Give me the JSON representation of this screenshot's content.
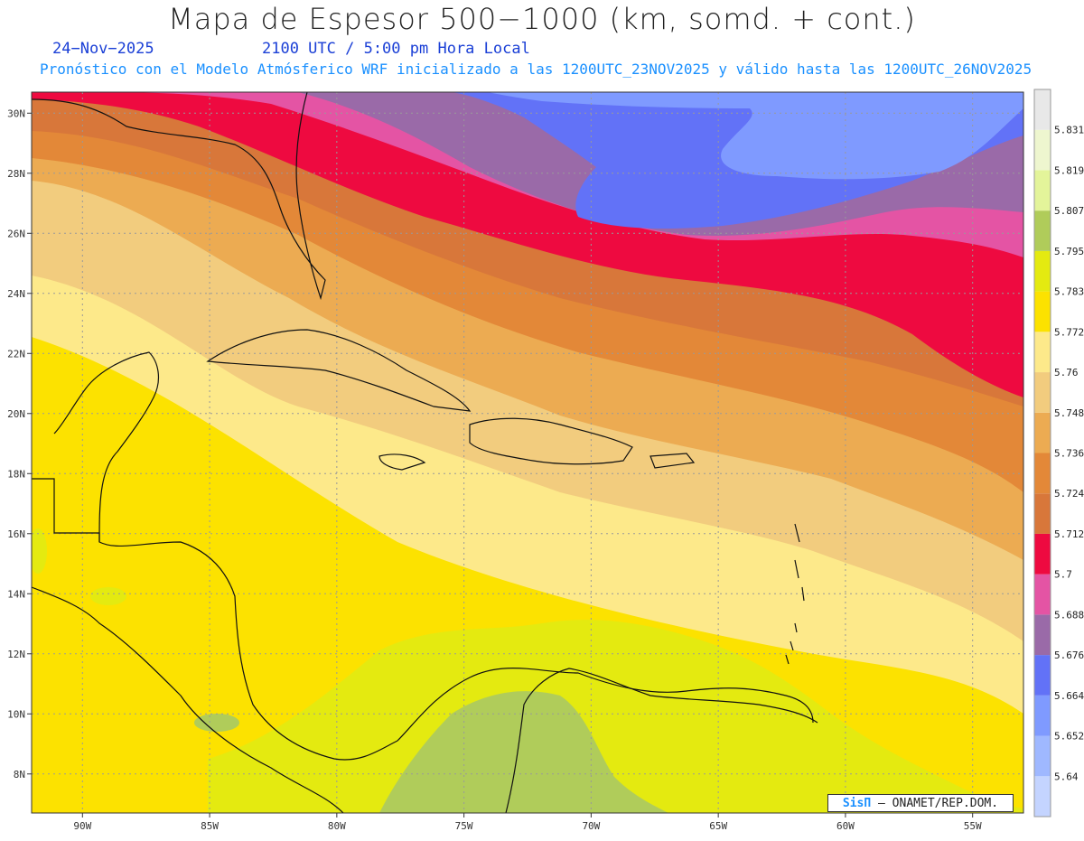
{
  "header": {
    "title": "Mapa de Espesor 500−1000 (km, somd. + cont.)",
    "date": "24−Nov−2025",
    "time": "2100 UTC / 5:00 pm Hora Local",
    "subtitle": "Pronóstico con el Modelo Atmósferico WRF inicializado a las 1200UTC_23NOV2025 y válido hasta las  1200UTC_26NOV2025"
  },
  "map": {
    "lon_range": [
      -92,
      -53
    ],
    "lat_range": [
      6.7,
      30.7
    ],
    "lat_ticks": [
      "8N",
      "10N",
      "12N",
      "14N",
      "16N",
      "18N",
      "20N",
      "22N",
      "24N",
      "26N",
      "28N",
      "30N"
    ],
    "lat_values": [
      8,
      10,
      12,
      14,
      16,
      18,
      20,
      22,
      24,
      26,
      28,
      30
    ],
    "lon_ticks": [
      "90W",
      "85W",
      "80W",
      "75W",
      "70W",
      "65W",
      "60W",
      "55W"
    ],
    "lon_values": [
      -90,
      -85,
      -80,
      -75,
      -70,
      -65,
      -60,
      -55
    ]
  },
  "colorbar": {
    "labels": [
      "5.64",
      "5.652",
      "5.664",
      "5.676",
      "5.688",
      "5.7",
      "5.712",
      "5.724",
      "5.736",
      "5.748",
      "5.76",
      "5.772",
      "5.783",
      "5.795",
      "5.807",
      "5.819",
      "5.831"
    ],
    "colors": [
      "#c4d4ff",
      "#9fb8ff",
      "#7f9aff",
      "#6272f7",
      "#9a6aa8",
      "#e454a4",
      "#ee0a40",
      "#d8773a",
      "#e38838",
      "#ecab52",
      "#f2cc7e",
      "#fde98a",
      "#fce200",
      "#e4ea10",
      "#b0cc5a",
      "#e3f49a",
      "#eef6cf",
      "#e8e8e8"
    ]
  },
  "credit": {
    "brand": "SisΠ",
    "org": "– ONAMET/REP.DOM."
  }
}
